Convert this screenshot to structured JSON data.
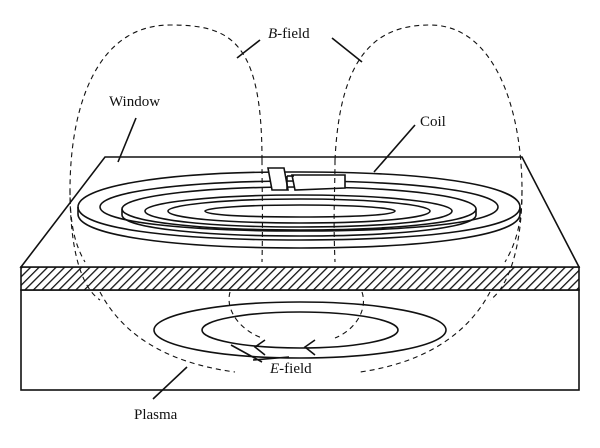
{
  "labels": {
    "b_field_italic": "B",
    "b_field_rest": "-field",
    "window": "Window",
    "coil": "Coil",
    "e_field_italic": "E",
    "e_field_rest": "-field",
    "plasma": "Plasma"
  }
}
